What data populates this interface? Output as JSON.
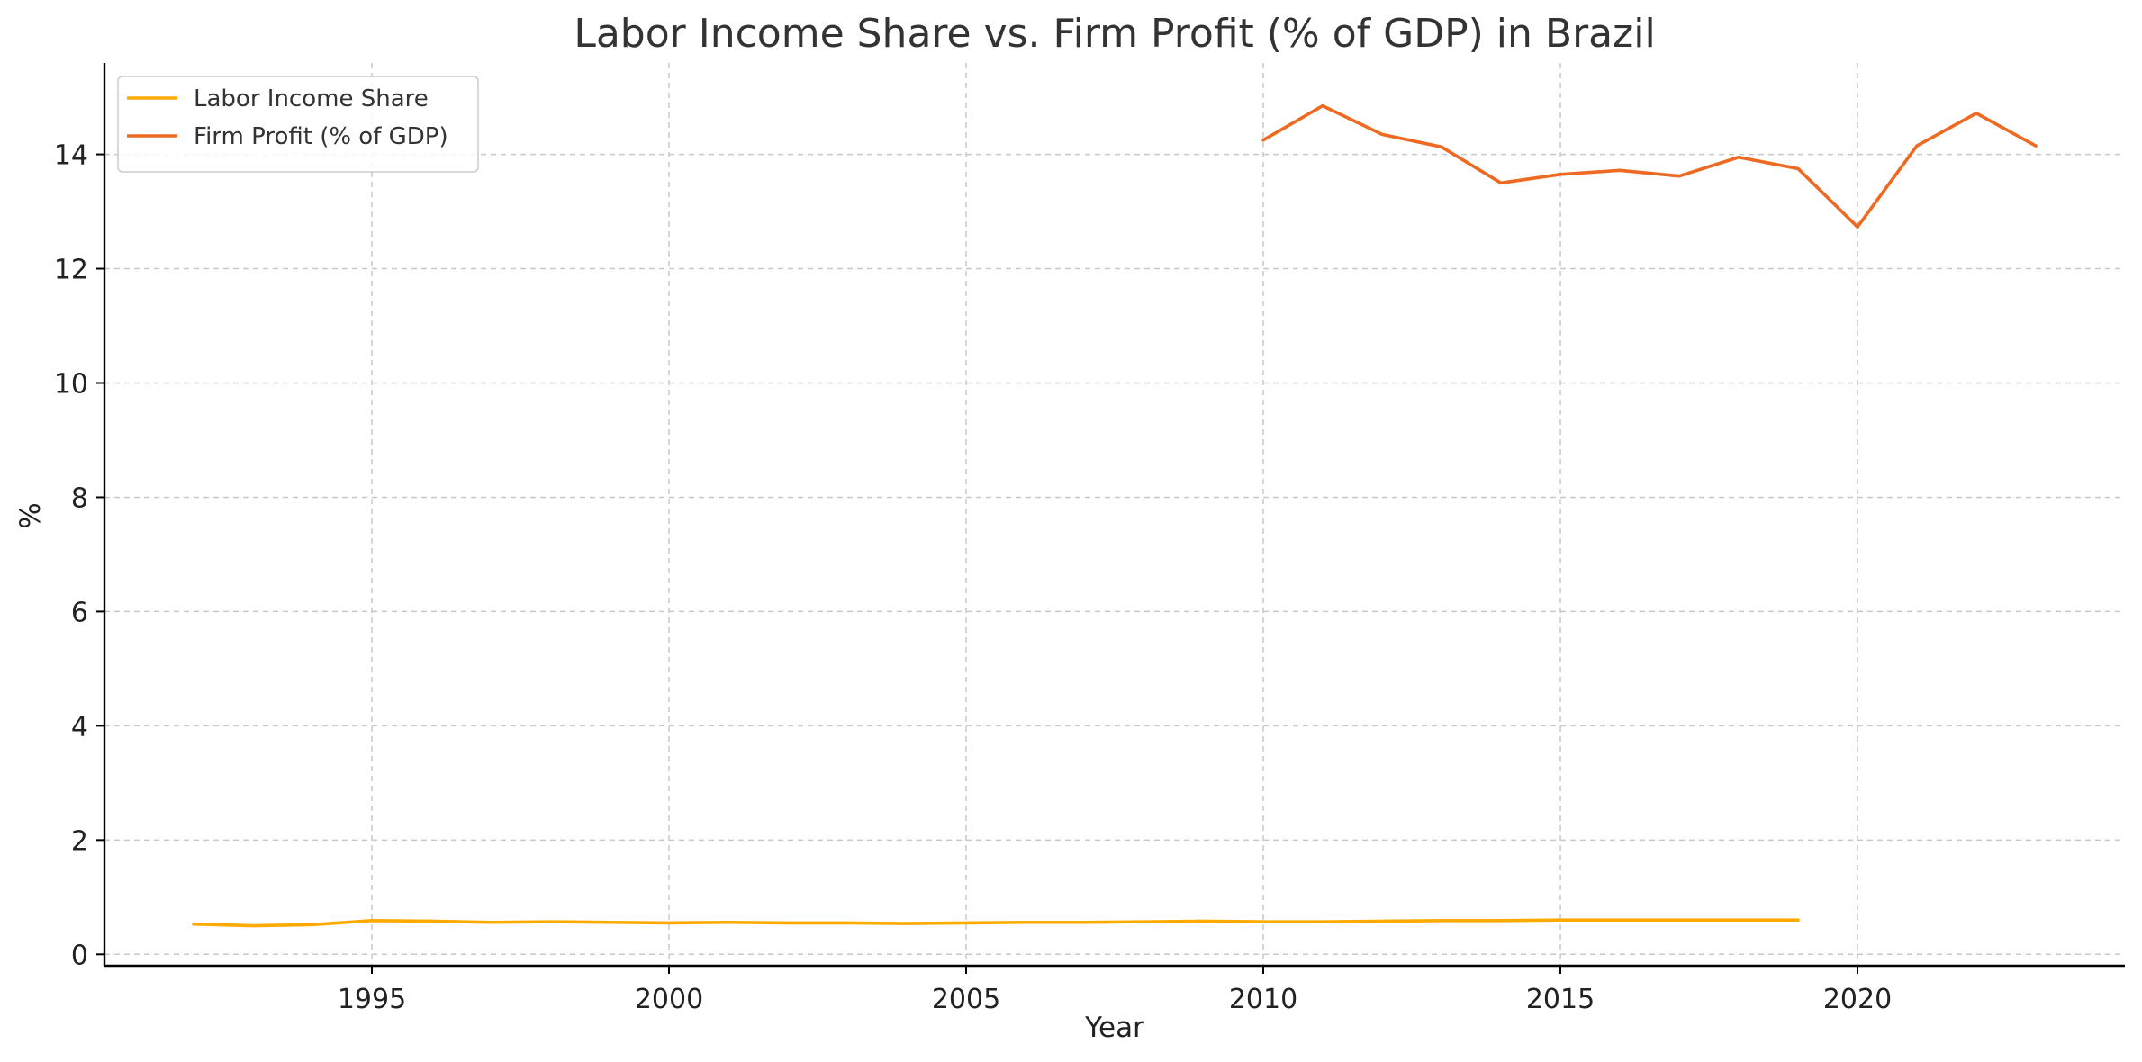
{
  "chart_data": {
    "type": "line",
    "title": "Labor Income Share vs. Firm Profit (% of GDP) in Brazil",
    "xlabel": "Year",
    "ylabel": "%",
    "xlim": [
      1990.5,
      2024.5
    ],
    "ylim": [
      -0.2,
      15.6
    ],
    "xticks": [
      1995,
      2000,
      2005,
      2010,
      2015,
      2020
    ],
    "yticks": [
      0,
      2,
      4,
      6,
      8,
      10,
      12,
      14
    ],
    "grid": true,
    "legend_position": "top-left",
    "series": [
      {
        "name": "Labor Income Share",
        "color": "#FFAA00",
        "x": [
          1992,
          1993,
          1994,
          1995,
          1996,
          1997,
          1998,
          1999,
          2000,
          2001,
          2002,
          2003,
          2004,
          2005,
          2006,
          2007,
          2008,
          2009,
          2010,
          2011,
          2012,
          2013,
          2014,
          2015,
          2016,
          2017,
          2018,
          2019
        ],
        "y": [
          0.53,
          0.5,
          0.52,
          0.59,
          0.58,
          0.56,
          0.57,
          0.56,
          0.55,
          0.56,
          0.55,
          0.55,
          0.54,
          0.55,
          0.56,
          0.56,
          0.57,
          0.58,
          0.57,
          0.57,
          0.58,
          0.59,
          0.59,
          0.6,
          0.6,
          0.6,
          0.6,
          0.6
        ]
      },
      {
        "name": "Firm Profit (% of GDP)",
        "color": "#EE6A22",
        "x": [
          2010,
          2011,
          2012,
          2013,
          2014,
          2015,
          2016,
          2017,
          2018,
          2019,
          2020,
          2021,
          2022,
          2023
        ],
        "y": [
          14.25,
          14.85,
          14.35,
          14.13,
          13.5,
          13.65,
          13.72,
          13.62,
          13.95,
          13.75,
          12.73,
          14.15,
          14.72,
          14.15
        ]
      }
    ]
  }
}
